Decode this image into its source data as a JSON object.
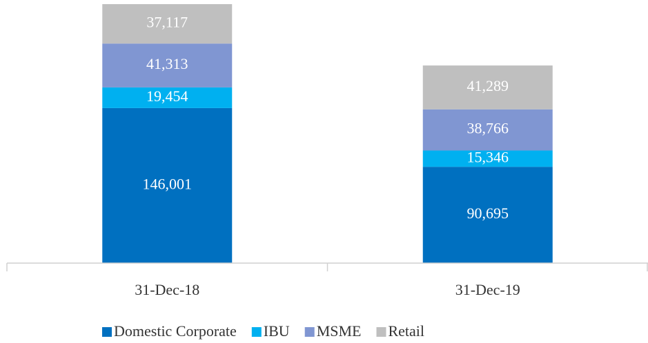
{
  "chart_data": {
    "type": "stacked_bar",
    "categories": [
      "31-Dec-18",
      "31-Dec-19"
    ],
    "series": [
      {
        "name": "Domestic Corporate",
        "color": "#0070c0",
        "values": [
          146001,
          90695
        ],
        "value_labels": [
          "146,001",
          "90,695"
        ]
      },
      {
        "name": "IBU",
        "color": "#00b0f0",
        "values": [
          19454,
          15346
        ],
        "value_labels": [
          "19,454",
          "15,346"
        ]
      },
      {
        "name": "MSME",
        "color": "#8096d2",
        "values": [
          41313,
          38766
        ],
        "value_labels": [
          "41,313",
          "38,766"
        ]
      },
      {
        "name": "Retail",
        "color": "#bfbfbf",
        "values": [
          37117,
          41289
        ],
        "value_labels": [
          "37,117",
          "41,289"
        ]
      }
    ]
  }
}
